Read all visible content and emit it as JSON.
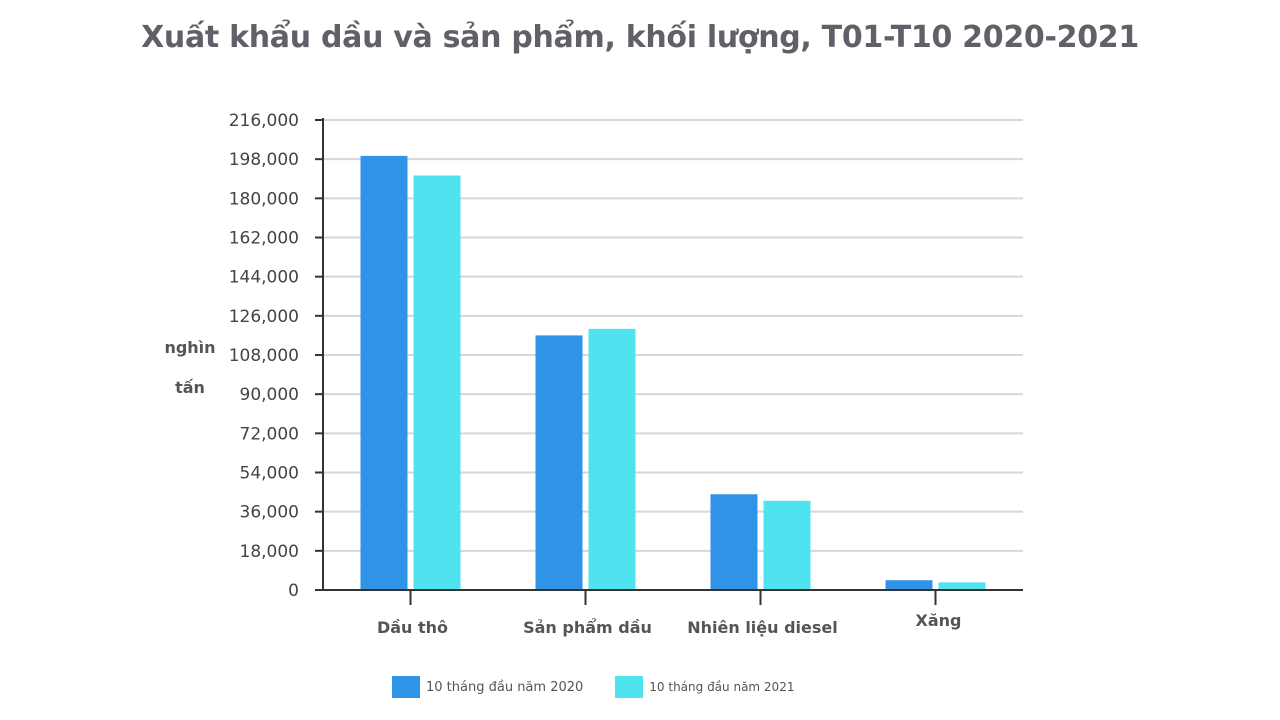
{
  "chart_data": {
    "type": "bar",
    "title": "Xuất khẩu dầu và sản phẩm, khối lượng, T01-T10 2020-2021",
    "ylabel_lines": [
      "nghìn",
      "tấn"
    ],
    "xlabel": "",
    "categories": [
      "Dầu thô",
      "Sản phẩm dầu",
      "Nhiên liệu diesel",
      "Xăng"
    ],
    "series": [
      {
        "name": "10 tháng đầu năm 2020",
        "color": "#2f93e8",
        "values": [
          199500,
          117000,
          44000,
          4500
        ]
      },
      {
        "name": "10 tháng đầu năm 2021",
        "color": "#4fe3f0",
        "values": [
          190500,
          120000,
          41000,
          3500
        ]
      }
    ],
    "ylim": [
      0,
      216000
    ],
    "yticks": [
      "0",
      "18,000",
      "36,000",
      "54,000",
      "72,000",
      "90,000",
      "108,000",
      "126,000",
      "144,000",
      "162,000",
      "180,000",
      "198,000",
      "216,000"
    ],
    "grid": true,
    "legend_position": "bottom"
  }
}
